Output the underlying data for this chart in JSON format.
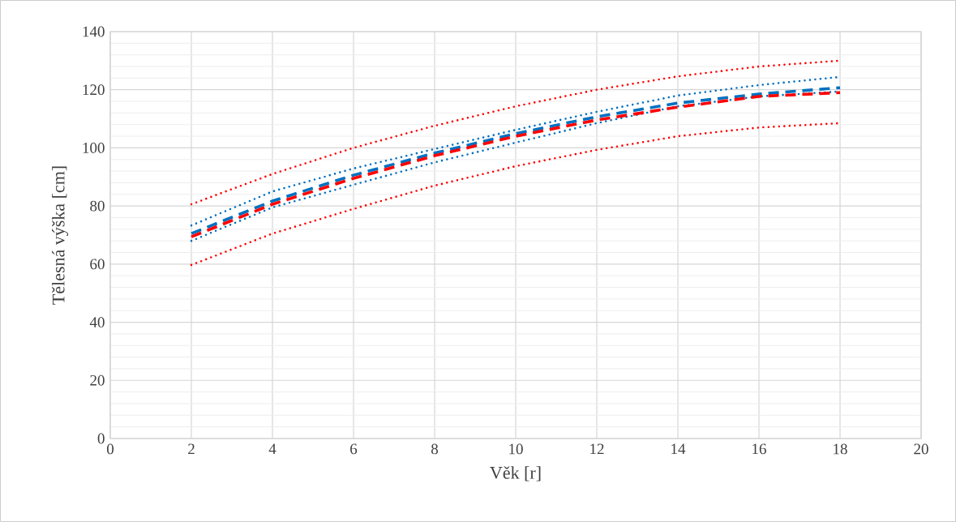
{
  "chart_data": {
    "type": "line",
    "xlabel": "Věk [r]",
    "ylabel": "Tělesná výška [cm]",
    "x": [
      2,
      4,
      6,
      8,
      10,
      12,
      14,
      16,
      18
    ],
    "series": [
      {
        "color": "#ff0000",
        "line_style": "dotted",
        "values": [
          80.6,
          91,
          100,
          107.6,
          114.3,
          120,
          124.6,
          128,
          130
        ]
      },
      {
        "color": "#ff0000",
        "line_style": "dotted",
        "values": [
          59.7,
          70.5,
          79,
          87,
          93.7,
          99.3,
          104,
          107,
          108.5
        ]
      },
      {
        "color": "#0070c0",
        "line_style": "dotted",
        "values": [
          73.3,
          85,
          92.9,
          99.6,
          106.2,
          112.4,
          118,
          121.6,
          124.4
        ]
      },
      {
        "color": "#0070c0",
        "line_style": "dotted",
        "values": [
          68,
          79.5,
          87.3,
          95,
          101.8,
          108.5,
          114.3,
          117.7,
          119.4
        ]
      },
      {
        "color": "#0070c0",
        "line_style": "dashed",
        "values": [
          70.5,
          81.7,
          90.6,
          98.2,
          104.9,
          110.7,
          115.4,
          118.5,
          120.7
        ]
      },
      {
        "color": "#ff0000",
        "line_style": "dashed",
        "values": [
          69.4,
          80.6,
          89.5,
          97.3,
          104,
          109.6,
          114,
          117.7,
          119
        ]
      }
    ],
    "xlim": [
      0,
      20
    ],
    "xticks": [
      0,
      2,
      4,
      6,
      8,
      10,
      12,
      14,
      16,
      18,
      20
    ],
    "ylim": [
      0,
      140
    ],
    "yticks": [
      0,
      20,
      40,
      60,
      80,
      100,
      120,
      140
    ],
    "grid": true,
    "marker": "none"
  }
}
